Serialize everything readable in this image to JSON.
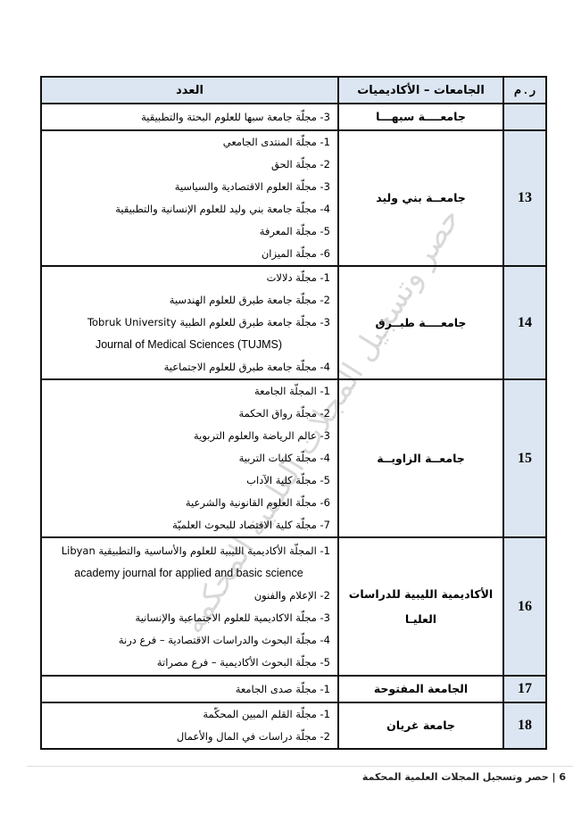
{
  "table": {
    "headers": {
      "number": "ر . م",
      "university": "الجامعات – الأكاديميات",
      "journals": "العدد"
    },
    "rows": [
      {
        "number": "",
        "university": "جامعــــة سبهـــا",
        "journals": [
          "3- مجلّة جامعة سبها للعلوم البحتة والتطبيقية"
        ]
      },
      {
        "number": "13",
        "university": "جامعــة بني وليد",
        "journals": [
          "1- مجلّة المنتدى الجامعي",
          "2- مجلّة الحق",
          "3- مجلّة العلوم الاقتصادية والسياسية",
          "4- مجلّة جامعة بني وليد للعلوم الإنسانية والتطبيقية",
          "5- مجلّة المعرفة",
          "6- مجلّة الميزان"
        ]
      },
      {
        "number": "14",
        "university": "جامعــــة طبــرق",
        "journals": [
          "1- مجلّة دلالات",
          "2- مجلّة جامعة طبرق للعلوم الهندسية",
          "3- مجلّة جامعة طبرق للعلوم الطبية  Tobruk University",
          "Journal of Medical Sciences (TUJMS)",
          "4- مجلّة جامعة طبرق للعلوم الاجتماعية"
        ]
      },
      {
        "number": "15",
        "university": "جامعــة الزاويــة",
        "journals": [
          "1- المجلّة الجامعة",
          "2- مجلّة رواق الحكمة",
          "3- عالم الرياضة والعلوم التربوية",
          "4- مجلّة كليات التربية",
          "5- مجلّة كلية الآداب",
          "6- مجلّة العلوم القانونية والشرعية",
          "7- مجلّة كلية الاقتصاد للبحوث العلميّة"
        ]
      },
      {
        "number": "16",
        "university": "الأكاديمية الليبية للدراسات العليـا",
        "journals": [
          "1- المجلّة الأكاديمية الليبية للعلوم والأساسية والتطبيقية  Libyan",
          "academy journal for applied and basic science",
          "2- الإعلام والفنون",
          "3- مجلّة الاكاديمية للعلوم الاجتماعية والإنسانية",
          "4- مجلّة البحوث والدراسات الاقتصادية – فرع درنة",
          "5- مجلّة البحوث الأكاديمية – فرع مصراتة"
        ]
      },
      {
        "number": "17",
        "university": "الجامعة المفتوحة",
        "journals": [
          "1- مجلّة صدى الجامعة"
        ]
      },
      {
        "number": "18",
        "university": "جامعة غريان",
        "journals": [
          "1- مجلّة القلم المبين المحكّمة",
          "2- مجلّة دراسات في المال والأعمال"
        ]
      }
    ]
  },
  "watermark": "حصر وتسجيل المجلات العلمية المحكمة",
  "footer": {
    "page_number": "6",
    "title": "حصر وتسجيل المجلات العلمية المحكمة"
  }
}
